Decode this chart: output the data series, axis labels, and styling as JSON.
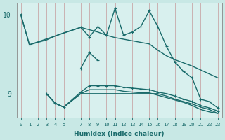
{
  "xlabel": "Humidex (Indice chaleur)",
  "ylabel": "",
  "bg_color": "#c8e8e5",
  "plot_bg_color": "#d8f0ee",
  "line_color": "#1a6b6b",
  "grid_color": "#b8d8d5",
  "xlim": [
    -0.5,
    23.5
  ],
  "ylim": [
    8.7,
    10.15
  ],
  "yticks": [
    9,
    10
  ],
  "xticks": [
    0,
    1,
    2,
    3,
    4,
    5,
    7,
    8,
    9,
    10,
    11,
    12,
    13,
    14,
    15,
    16,
    17,
    18,
    19,
    20,
    21,
    22,
    23
  ],
  "lines": [
    {
      "x": [
        0,
        1,
        3,
        4,
        5,
        7,
        8,
        9,
        10,
        11,
        12,
        13,
        14,
        15,
        16,
        17,
        18,
        19,
        20,
        21,
        22,
        23
      ],
      "y": [
        10.0,
        9.62,
        9.68,
        9.73,
        9.77,
        9.84,
        9.81,
        9.78,
        9.74,
        9.71,
        9.69,
        9.67,
        9.65,
        9.63,
        9.55,
        9.48,
        9.43,
        9.39,
        9.35,
        9.3,
        9.25,
        9.2
      ],
      "marker": null,
      "lw": 1.0
    },
    {
      "x": [
        0,
        1,
        7,
        8,
        9,
        10,
        11,
        12,
        13,
        14,
        15,
        16,
        17,
        18,
        19,
        20,
        21,
        22,
        23
      ],
      "y": [
        10.0,
        9.62,
        9.84,
        9.72,
        9.85,
        9.74,
        10.08,
        9.74,
        9.78,
        9.85,
        10.05,
        9.85,
        9.6,
        9.4,
        9.28,
        9.2,
        8.93,
        8.9,
        8.82
      ],
      "marker": "+",
      "lw": 1.0
    },
    {
      "x": [
        7,
        8,
        9
      ],
      "y": [
        9.32,
        9.52,
        9.42
      ],
      "marker": "+",
      "lw": 1.0
    },
    {
      "x": [
        3,
        4,
        5,
        7,
        8,
        9,
        10,
        11,
        12,
        13,
        14,
        15,
        16,
        17,
        18,
        19,
        20,
        21,
        22,
        23
      ],
      "y": [
        9.0,
        8.88,
        8.83,
        9.0,
        9.0,
        9.0,
        9.0,
        9.0,
        9.0,
        9.0,
        9.0,
        9.0,
        9.0,
        8.97,
        8.93,
        8.9,
        8.87,
        8.83,
        8.8,
        8.75
      ],
      "marker": null,
      "lw": 1.0
    },
    {
      "x": [
        3,
        4,
        5,
        7,
        8,
        9,
        10,
        11,
        12,
        13,
        14,
        15,
        16,
        17,
        18,
        19,
        20,
        21,
        22,
        23
      ],
      "y": [
        9.0,
        8.88,
        8.83,
        9.0,
        9.05,
        9.05,
        9.05,
        9.05,
        9.03,
        9.02,
        9.01,
        9.01,
        8.98,
        8.95,
        8.92,
        8.89,
        8.85,
        8.8,
        8.77,
        8.75
      ],
      "marker": null,
      "lw": 1.0
    },
    {
      "x": [
        3,
        4,
        5,
        7,
        8,
        9,
        10,
        11,
        12,
        13,
        14,
        15,
        16,
        17,
        18,
        19,
        20,
        21,
        22,
        23
      ],
      "y": [
        9.0,
        8.88,
        8.83,
        9.02,
        9.1,
        9.1,
        9.1,
        9.1,
        9.08,
        9.07,
        9.06,
        9.05,
        9.02,
        9.0,
        8.97,
        8.93,
        8.9,
        8.85,
        8.82,
        8.78
      ],
      "marker": "+",
      "lw": 1.0
    }
  ]
}
